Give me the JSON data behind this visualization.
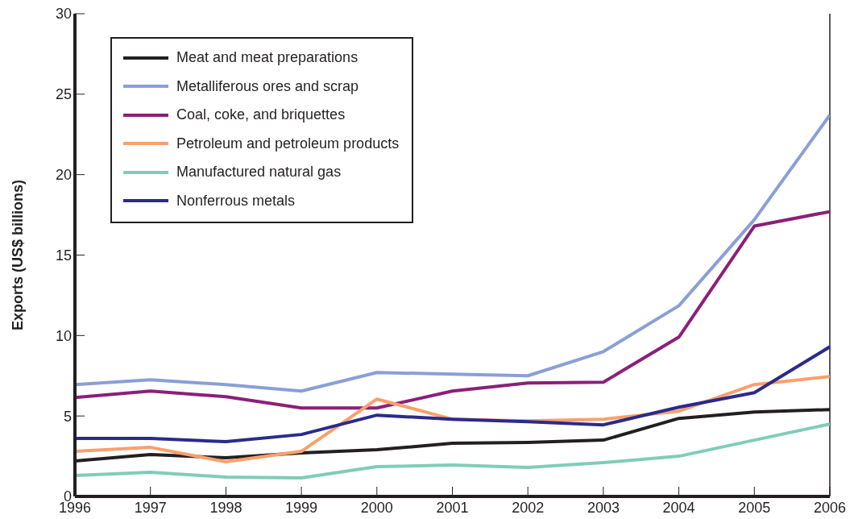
{
  "chart_data": {
    "type": "line",
    "ylabel": "Exports (US$ billions)",
    "x": [
      1996,
      1997,
      1998,
      1999,
      2000,
      2001,
      2002,
      2003,
      2004,
      2005,
      2006
    ],
    "xlim": [
      1996,
      2006
    ],
    "xticks": [
      1996,
      1997,
      1998,
      1999,
      2000,
      2001,
      2002,
      2003,
      2004,
      2005,
      2006
    ],
    "ylim": [
      0,
      30
    ],
    "yticks": [
      0,
      5,
      10,
      15,
      20,
      25,
      30
    ],
    "grid": false,
    "legend": "top left",
    "marker": "none",
    "line_style": "solid",
    "series": [
      {
        "name": "Meat and meat preparations",
        "color": "#231f20",
        "values": [
          2.2,
          2.6,
          2.4,
          2.7,
          2.9,
          3.3,
          3.35,
          3.5,
          4.85,
          5.25,
          5.4
        ]
      },
      {
        "name": "Metalliferous ores and scrap",
        "color": "#8a9fd6",
        "values": [
          6.95,
          7.25,
          6.95,
          6.55,
          7.7,
          7.6,
          7.5,
          9.0,
          11.85,
          17.2,
          23.7
        ]
      },
      {
        "name": "Coal, coke, and briquettes",
        "color": "#8b1f7a",
        "values": [
          6.15,
          6.55,
          6.2,
          5.5,
          5.5,
          6.55,
          7.05,
          7.1,
          9.9,
          16.8,
          17.7
        ]
      },
      {
        "name": "Petroleum and petroleum products",
        "color": "#f9a06c",
        "values": [
          2.8,
          3.05,
          2.15,
          2.8,
          6.05,
          4.8,
          4.7,
          4.8,
          5.3,
          6.95,
          7.45
        ]
      },
      {
        "name": "Manufactured natural gas",
        "color": "#7fcdb8",
        "values": [
          1.3,
          1.5,
          1.2,
          1.15,
          1.85,
          1.95,
          1.8,
          2.1,
          2.5,
          3.5,
          4.5
        ]
      },
      {
        "name": "Nonferrous metals",
        "color": "#2b2a8c",
        "values": [
          3.6,
          3.6,
          3.4,
          3.85,
          5.05,
          4.8,
          4.65,
          4.45,
          5.55,
          6.45,
          9.3
        ]
      }
    ]
  }
}
